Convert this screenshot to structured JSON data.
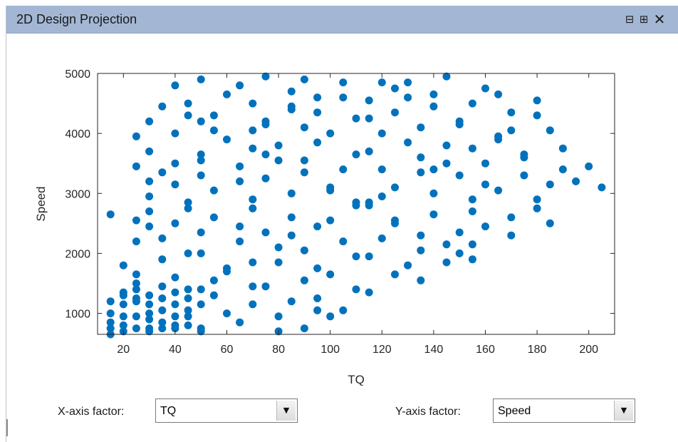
{
  "window": {
    "title": "2D Design Projection",
    "buttons": {
      "undock_icon": "undock-icon",
      "dock_icon": "dock-icon",
      "close_icon": "close-icon"
    }
  },
  "controls": {
    "x_label": "X-axis factor:",
    "x_value": "TQ",
    "y_label": "Y-axis factor:",
    "y_value": "Speed"
  },
  "colors": {
    "point": "#0072bd",
    "titlebar": "#a3b7d4"
  },
  "chart_data": {
    "type": "scatter",
    "xlabel": "TQ",
    "ylabel": "Speed",
    "xlim": [
      10,
      210
    ],
    "ylim": [
      650,
      5000
    ],
    "xticks": [
      20,
      40,
      60,
      80,
      100,
      120,
      140,
      160,
      180,
      200
    ],
    "yticks": [
      1000,
      2000,
      3000,
      4000,
      5000
    ],
    "grid": false,
    "points": [
      [
        15,
        2650
      ],
      [
        15,
        1200
      ],
      [
        15,
        1000
      ],
      [
        15,
        850
      ],
      [
        15,
        750
      ],
      [
        15,
        650
      ],
      [
        20,
        1800
      ],
      [
        20,
        1350
      ],
      [
        20,
        1300
      ],
      [
        20,
        1150
      ],
      [
        20,
        950
      ],
      [
        20,
        800
      ],
      [
        20,
        700
      ],
      [
        25,
        3950
      ],
      [
        25,
        3450
      ],
      [
        25,
        2550
      ],
      [
        25,
        2200
      ],
      [
        25,
        1650
      ],
      [
        25,
        1500
      ],
      [
        25,
        1400
      ],
      [
        25,
        1250
      ],
      [
        25,
        1200
      ],
      [
        25,
        950
      ],
      [
        25,
        750
      ],
      [
        30,
        4200
      ],
      [
        30,
        3700
      ],
      [
        30,
        3200
      ],
      [
        30,
        2950
      ],
      [
        30,
        2700
      ],
      [
        30,
        2450
      ],
      [
        30,
        1300
      ],
      [
        30,
        1150
      ],
      [
        30,
        1000
      ],
      [
        30,
        900
      ],
      [
        30,
        750
      ],
      [
        30,
        700
      ],
      [
        35,
        4450
      ],
      [
        35,
        3350
      ],
      [
        35,
        2250
      ],
      [
        35,
        1900
      ],
      [
        35,
        1450
      ],
      [
        35,
        1250
      ],
      [
        35,
        1050
      ],
      [
        35,
        850
      ],
      [
        35,
        750
      ],
      [
        40,
        4800
      ],
      [
        40,
        4000
      ],
      [
        40,
        3500
      ],
      [
        40,
        3150
      ],
      [
        40,
        2500
      ],
      [
        40,
        1600
      ],
      [
        40,
        1350
      ],
      [
        40,
        1150
      ],
      [
        40,
        950
      ],
      [
        40,
        800
      ],
      [
        40,
        750
      ],
      [
        45,
        4500
      ],
      [
        45,
        4300
      ],
      [
        45,
        2850
      ],
      [
        45,
        2750
      ],
      [
        45,
        2000
      ],
      [
        45,
        1400
      ],
      [
        45,
        1250
      ],
      [
        45,
        1050
      ],
      [
        45,
        950
      ],
      [
        45,
        800
      ],
      [
        50,
        4900
      ],
      [
        50,
        4200
      ],
      [
        50,
        3650
      ],
      [
        50,
        3550
      ],
      [
        50,
        3300
      ],
      [
        50,
        2350
      ],
      [
        50,
        2000
      ],
      [
        50,
        1400
      ],
      [
        50,
        1150
      ],
      [
        50,
        750
      ],
      [
        50,
        700
      ],
      [
        55,
        4300
      ],
      [
        55,
        4050
      ],
      [
        55,
        3050
      ],
      [
        55,
        2600
      ],
      [
        55,
        1550
      ],
      [
        55,
        1300
      ],
      [
        60,
        4650
      ],
      [
        60,
        3900
      ],
      [
        60,
        1750
      ],
      [
        60,
        1700
      ],
      [
        60,
        1000
      ],
      [
        65,
        4800
      ],
      [
        65,
        3450
      ],
      [
        65,
        3200
      ],
      [
        65,
        2450
      ],
      [
        65,
        2200
      ],
      [
        65,
        850
      ],
      [
        70,
        4500
      ],
      [
        70,
        4050
      ],
      [
        70,
        3750
      ],
      [
        70,
        2900
      ],
      [
        70,
        2750
      ],
      [
        70,
        1850
      ],
      [
        70,
        1450
      ],
      [
        70,
        1150
      ],
      [
        75,
        4950
      ],
      [
        75,
        4200
      ],
      [
        75,
        4150
      ],
      [
        75,
        3650
      ],
      [
        75,
        3250
      ],
      [
        75,
        2350
      ],
      [
        75,
        1450
      ],
      [
        80,
        3800
      ],
      [
        80,
        3550
      ],
      [
        80,
        2100
      ],
      [
        80,
        1850
      ],
      [
        80,
        950
      ],
      [
        80,
        700
      ],
      [
        85,
        4700
      ],
      [
        85,
        4450
      ],
      [
        85,
        4400
      ],
      [
        85,
        3000
      ],
      [
        85,
        2600
      ],
      [
        85,
        2300
      ],
      [
        85,
        1200
      ],
      [
        90,
        4900
      ],
      [
        90,
        4100
      ],
      [
        90,
        3550
      ],
      [
        90,
        3350
      ],
      [
        90,
        2050
      ],
      [
        90,
        1550
      ],
      [
        90,
        750
      ],
      [
        95,
        4600
      ],
      [
        95,
        4350
      ],
      [
        95,
        3850
      ],
      [
        95,
        2450
      ],
      [
        95,
        1750
      ],
      [
        95,
        1250
      ],
      [
        95,
        1050
      ],
      [
        100,
        4000
      ],
      [
        100,
        3100
      ],
      [
        100,
        3050
      ],
      [
        100,
        2550
      ],
      [
        100,
        1650
      ],
      [
        100,
        950
      ],
      [
        105,
        4850
      ],
      [
        105,
        4600
      ],
      [
        105,
        3400
      ],
      [
        105,
        2200
      ],
      [
        105,
        1050
      ],
      [
        110,
        4250
      ],
      [
        110,
        3650
      ],
      [
        110,
        2850
      ],
      [
        110,
        2800
      ],
      [
        110,
        1950
      ],
      [
        110,
        1400
      ],
      [
        115,
        4550
      ],
      [
        115,
        4250
      ],
      [
        115,
        3700
      ],
      [
        115,
        2850
      ],
      [
        115,
        2800
      ],
      [
        115,
        1950
      ],
      [
        115,
        1350
      ],
      [
        120,
        4850
      ],
      [
        120,
        4000
      ],
      [
        120,
        3400
      ],
      [
        120,
        2950
      ],
      [
        120,
        2250
      ],
      [
        125,
        4750
      ],
      [
        125,
        4350
      ],
      [
        125,
        3100
      ],
      [
        125,
        2550
      ],
      [
        125,
        2500
      ],
      [
        125,
        1650
      ],
      [
        130,
        4850
      ],
      [
        130,
        4600
      ],
      [
        130,
        3850
      ],
      [
        130,
        1800
      ],
      [
        135,
        4100
      ],
      [
        135,
        3600
      ],
      [
        135,
        3350
      ],
      [
        135,
        2300
      ],
      [
        135,
        2050
      ],
      [
        135,
        1550
      ],
      [
        140,
        4650
      ],
      [
        140,
        4450
      ],
      [
        140,
        3400
      ],
      [
        140,
        3000
      ],
      [
        140,
        2650
      ],
      [
        145,
        4950
      ],
      [
        145,
        3800
      ],
      [
        145,
        3500
      ],
      [
        145,
        2150
      ],
      [
        145,
        1850
      ],
      [
        150,
        4200
      ],
      [
        150,
        4150
      ],
      [
        150,
        3300
      ],
      [
        150,
        2350
      ],
      [
        150,
        2000
      ],
      [
        155,
        4500
      ],
      [
        155,
        3750
      ],
      [
        155,
        2900
      ],
      [
        155,
        2700
      ],
      [
        155,
        2150
      ],
      [
        155,
        1900
      ],
      [
        160,
        4750
      ],
      [
        160,
        3500
      ],
      [
        160,
        3150
      ],
      [
        160,
        2450
      ],
      [
        165,
        4650
      ],
      [
        165,
        3950
      ],
      [
        165,
        3900
      ],
      [
        165,
        3050
      ],
      [
        170,
        4350
      ],
      [
        170,
        4050
      ],
      [
        170,
        2600
      ],
      [
        170,
        2300
      ],
      [
        175,
        3650
      ],
      [
        175,
        3600
      ],
      [
        175,
        3300
      ],
      [
        180,
        4550
      ],
      [
        180,
        4300
      ],
      [
        180,
        2900
      ],
      [
        180,
        2750
      ],
      [
        185,
        4050
      ],
      [
        185,
        3150
      ],
      [
        185,
        2500
      ],
      [
        190,
        3750
      ],
      [
        190,
        3400
      ],
      [
        195,
        3200
      ],
      [
        200,
        3450
      ],
      [
        205,
        3100
      ]
    ]
  }
}
